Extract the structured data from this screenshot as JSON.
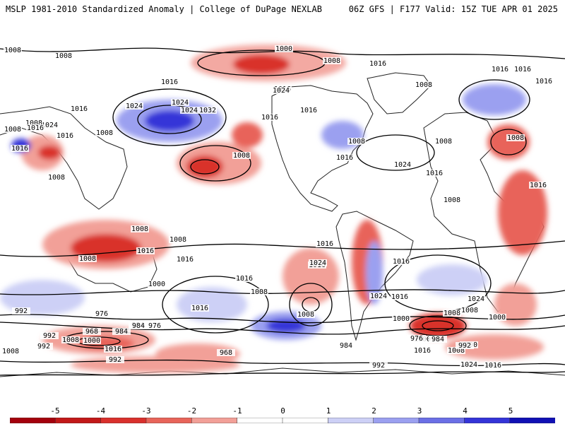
{
  "header": {
    "title": "MSLP 1981-2010 Standardized Anomaly | College of DuPage NEXLAB",
    "run_info": "06Z GFS | F177 Valid: 15Z TUE APR 01 2025"
  },
  "colorbar": {
    "tick_labels": [
      "-5",
      "-4",
      "-3",
      "-2",
      "-1",
      "0",
      "1",
      "2",
      "3",
      "4",
      "5"
    ],
    "colors": [
      "#a4000c",
      "#c21818",
      "#d9302c",
      "#e8645a",
      "#f2a098",
      "#ffffff",
      "#ffffff",
      "#cdd0f6",
      "#9ba0f0",
      "#6b6fe6",
      "#3434d8",
      "#1010b4"
    ]
  },
  "isobar_labels": [
    "1008",
    "1008",
    "1000",
    "1008",
    "1016",
    "1016",
    "1016",
    "1016",
    "1024",
    "1024",
    "1024",
    "1032",
    "1016",
    "1016",
    "1024",
    "1024",
    "1016",
    "1016",
    "1008",
    "1008",
    "1016",
    "1008",
    "1008",
    "1016",
    "1008",
    "1016",
    "1016",
    "1024",
    "1016",
    "1008",
    "1008",
    "1008",
    "1008",
    "1008",
    "1016",
    "1016",
    "1008",
    "1008",
    "1016",
    "1008",
    "1016",
    "1016",
    "1016",
    "1016",
    "1024",
    "1024",
    "1016",
    "1000",
    "1008",
    "1008",
    "1016",
    "1024",
    "1016",
    "1000",
    "1008",
    "992",
    "976",
    "968",
    "984",
    "992",
    "1008",
    "1000",
    "984",
    "976",
    "1016",
    "992",
    "968",
    "984",
    "992",
    "1000",
    "1008",
    "1016",
    "1008",
    "1000",
    "984",
    "976",
    "984",
    "992",
    "1000",
    "992",
    "1008",
    "1016",
    "1024",
    "1016"
  ]
}
